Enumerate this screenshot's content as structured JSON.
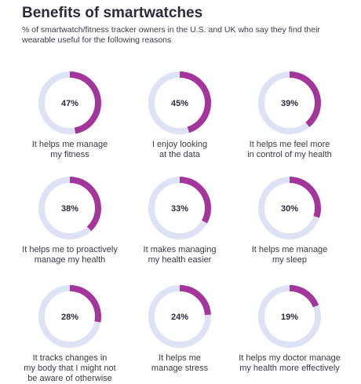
{
  "colors": {
    "arc": "#a3359b",
    "track": "#dde3f4"
  },
  "chart_data": {
    "type": "donut",
    "title": "Benefits of smartwatches",
    "subtitle": "% of smartwatch/fitness tracker owners in the U.S. and UK who say they find their wearable useful for the following reasons",
    "unit": "%",
    "items": [
      {
        "value": 47,
        "display": "47%",
        "label": "It helps me manage\nmy fitness"
      },
      {
        "value": 45,
        "display": "45%",
        "label": "I enjoy looking\nat the data"
      },
      {
        "value": 39,
        "display": "39%",
        "label": "It helps me feel more\nin control of my health"
      },
      {
        "value": 38,
        "display": "38%",
        "label": "It helps me to proactively\nmanage my health"
      },
      {
        "value": 33,
        "display": "33%",
        "label": "It makes managing\nmy health easier"
      },
      {
        "value": 30,
        "display": "30%",
        "label": "It helps me manage\nmy sleep"
      },
      {
        "value": 28,
        "display": "28%",
        "label": "It tracks changes in\nmy body that I might not\nbe aware of otherwise"
      },
      {
        "value": 24,
        "display": "24%",
        "label": "It helps me\nmanage stress"
      },
      {
        "value": 19,
        "display": "19%",
        "label": "It helps my doctor manage\nmy health more effectively"
      }
    ]
  }
}
